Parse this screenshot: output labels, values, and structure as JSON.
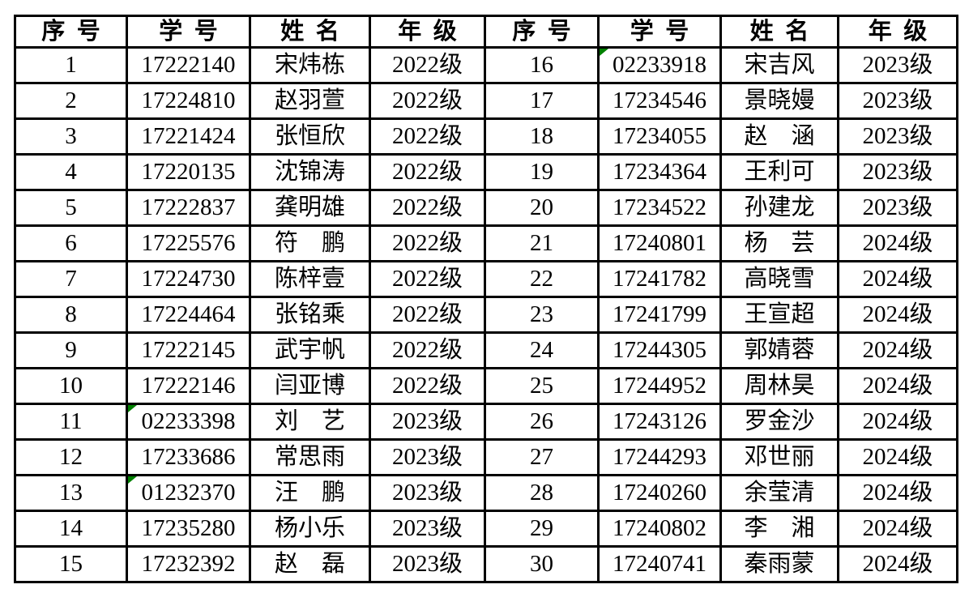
{
  "colors": {
    "border": "#000000",
    "flag_indicator": "#008000",
    "background": "#ffffff",
    "text": "#000000"
  },
  "table": {
    "headers": [
      "序号",
      "学号",
      "姓名",
      "年级"
    ],
    "rows": [
      {
        "left": {
          "no": "1",
          "id": "17222140",
          "name": "宋炜栋",
          "grade": "2022级",
          "id_flag": false
        },
        "right": {
          "no": "16",
          "id": "02233918",
          "name": "宋吉风",
          "grade": "2023级",
          "id_flag": true
        }
      },
      {
        "left": {
          "no": "2",
          "id": "17224810",
          "name": "赵羽萱",
          "grade": "2022级",
          "id_flag": false
        },
        "right": {
          "no": "17",
          "id": "17234546",
          "name": "景晓嫚",
          "grade": "2023级",
          "id_flag": false
        }
      },
      {
        "left": {
          "no": "3",
          "id": "17221424",
          "name": "张恒欣",
          "grade": "2022级",
          "id_flag": false
        },
        "right": {
          "no": "18",
          "id": "17234055",
          "name": "赵　涵",
          "grade": "2023级",
          "id_flag": false
        }
      },
      {
        "left": {
          "no": "4",
          "id": "17220135",
          "name": "沈锦涛",
          "grade": "2022级",
          "id_flag": false
        },
        "right": {
          "no": "19",
          "id": "17234364",
          "name": "王利可",
          "grade": "2023级",
          "id_flag": false
        }
      },
      {
        "left": {
          "no": "5",
          "id": "17222837",
          "name": "龚明雄",
          "grade": "2022级",
          "id_flag": false
        },
        "right": {
          "no": "20",
          "id": "17234522",
          "name": "孙建龙",
          "grade": "2023级",
          "id_flag": false
        }
      },
      {
        "left": {
          "no": "6",
          "id": "17225576",
          "name": "符　鹏",
          "grade": "2022级",
          "id_flag": false
        },
        "right": {
          "no": "21",
          "id": "17240801",
          "name": "杨　芸",
          "grade": "2024级",
          "id_flag": false
        }
      },
      {
        "left": {
          "no": "7",
          "id": "17224730",
          "name": "陈梓壹",
          "grade": "2022级",
          "id_flag": false
        },
        "right": {
          "no": "22",
          "id": "17241782",
          "name": "高晓雪",
          "grade": "2024级",
          "id_flag": false
        }
      },
      {
        "left": {
          "no": "8",
          "id": "17224464",
          "name": "张铭乘",
          "grade": "2022级",
          "id_flag": false
        },
        "right": {
          "no": "23",
          "id": "17241799",
          "name": "王宣超",
          "grade": "2024级",
          "id_flag": false
        }
      },
      {
        "left": {
          "no": "9",
          "id": "17222145",
          "name": "武宇帆",
          "grade": "2022级",
          "id_flag": false
        },
        "right": {
          "no": "24",
          "id": "17244305",
          "name": "郭婧蓉",
          "grade": "2024级",
          "id_flag": false
        }
      },
      {
        "left": {
          "no": "10",
          "id": "17222146",
          "name": "闫亚博",
          "grade": "2022级",
          "id_flag": false
        },
        "right": {
          "no": "25",
          "id": "17244952",
          "name": "周林昊",
          "grade": "2024级",
          "id_flag": false
        }
      },
      {
        "left": {
          "no": "11",
          "id": "02233398",
          "name": "刘　艺",
          "grade": "2023级",
          "id_flag": true
        },
        "right": {
          "no": "26",
          "id": "17243126",
          "name": "罗金沙",
          "grade": "2024级",
          "id_flag": false
        }
      },
      {
        "left": {
          "no": "12",
          "id": "17233686",
          "name": "常思雨",
          "grade": "2023级",
          "id_flag": false
        },
        "right": {
          "no": "27",
          "id": "17244293",
          "name": "邓世丽",
          "grade": "2024级",
          "id_flag": false
        }
      },
      {
        "left": {
          "no": "13",
          "id": "01232370",
          "name": "汪　鹏",
          "grade": "2023级",
          "id_flag": true
        },
        "right": {
          "no": "28",
          "id": "17240260",
          "name": "余莹清",
          "grade": "2024级",
          "id_flag": false
        }
      },
      {
        "left": {
          "no": "14",
          "id": "17235280",
          "name": "杨小乐",
          "grade": "2023级",
          "id_flag": false
        },
        "right": {
          "no": "29",
          "id": "17240802",
          "name": "李　湘",
          "grade": "2024级",
          "id_flag": false
        }
      },
      {
        "left": {
          "no": "15",
          "id": "17232392",
          "name": "赵　磊",
          "grade": "2023级",
          "id_flag": false
        },
        "right": {
          "no": "30",
          "id": "17240741",
          "name": "秦雨蒙",
          "grade": "2024级",
          "id_flag": false
        }
      }
    ]
  }
}
